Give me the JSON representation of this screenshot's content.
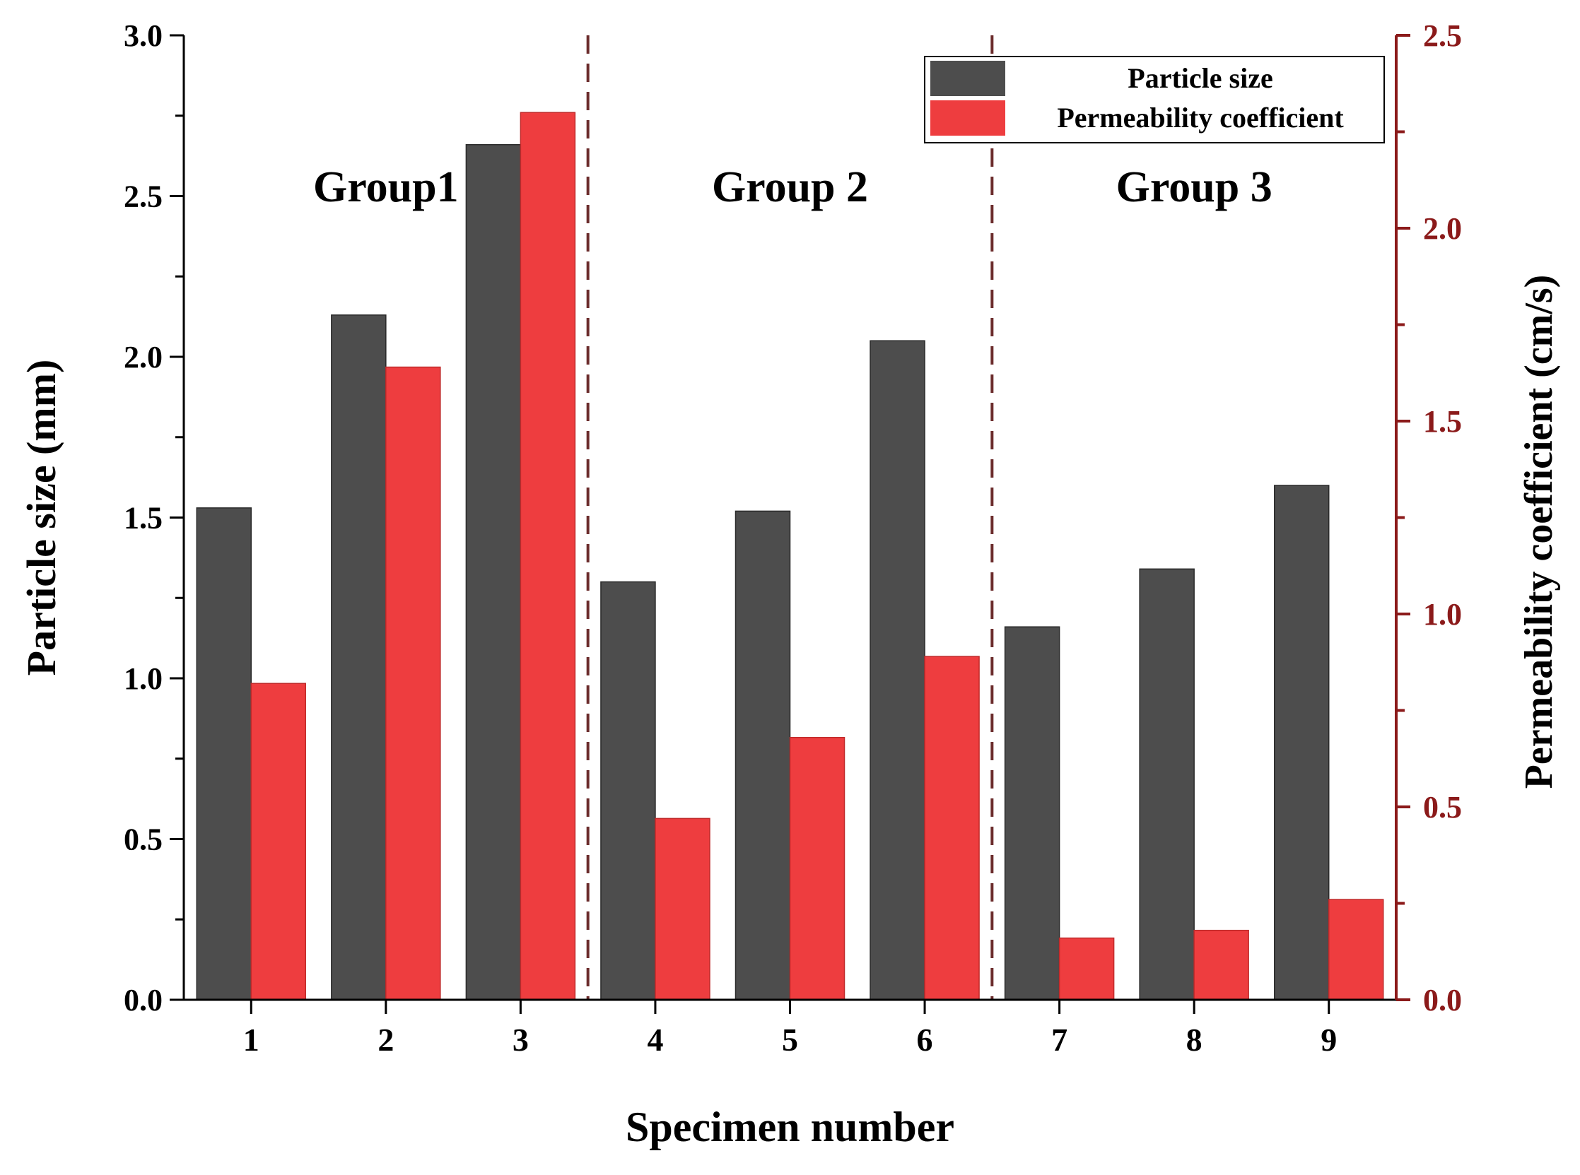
{
  "chart_data": {
    "type": "bar",
    "x_title": "Specimen number",
    "categories": [
      "1",
      "2",
      "3",
      "4",
      "5",
      "6",
      "7",
      "8",
      "9"
    ],
    "left_axis": {
      "label": "Particle size   (mm)",
      "ylim": [
        0.0,
        3.0
      ],
      "ticks": [
        "0.0",
        "0.5",
        "1.0",
        "1.5",
        "2.0",
        "2.5",
        "3.0"
      ]
    },
    "right_axis": {
      "label": "Permeability coefficient  (cm/s)",
      "ylim": [
        0.0,
        2.5
      ],
      "ticks": [
        "0.0",
        "0.5",
        "1.0",
        "1.5",
        "2.0",
        "2.5"
      ]
    },
    "series": [
      {
        "name": "Particle size",
        "axis": "left",
        "color": "#4d4d4d",
        "values": [
          1.53,
          2.13,
          2.66,
          1.3,
          1.52,
          2.05,
          1.16,
          1.34,
          1.6
        ]
      },
      {
        "name": "Permeability coefficient",
        "axis": "right",
        "color": "#ee3d3f",
        "values": [
          0.82,
          1.64,
          2.3,
          0.47,
          0.68,
          0.89,
          0.16,
          0.18,
          0.26
        ]
      }
    ],
    "groups": [
      {
        "label": "Group1",
        "range": [
          1,
          3
        ]
      },
      {
        "label": "Group 2",
        "range": [
          4,
          6
        ]
      },
      {
        "label": "Group 3",
        "range": [
          7,
          9
        ]
      }
    ],
    "right_axis_color": "#8b1a1a",
    "divider_color": "#6b2c2c",
    "legend": "top-right"
  }
}
